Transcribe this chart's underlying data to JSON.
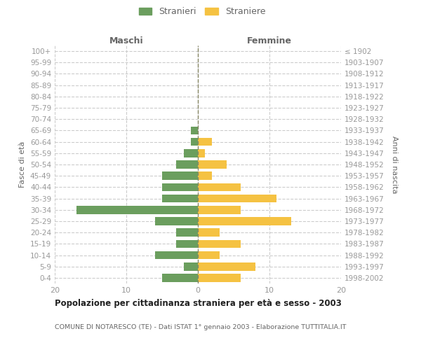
{
  "age_groups": [
    "100+",
    "95-99",
    "90-94",
    "85-89",
    "80-84",
    "75-79",
    "70-74",
    "65-69",
    "60-64",
    "55-59",
    "50-54",
    "45-49",
    "40-44",
    "35-39",
    "30-34",
    "25-29",
    "20-24",
    "15-19",
    "10-14",
    "5-9",
    "0-4"
  ],
  "birth_years": [
    "≤ 1902",
    "1903-1907",
    "1908-1912",
    "1913-1917",
    "1918-1922",
    "1923-1927",
    "1928-1932",
    "1933-1937",
    "1938-1942",
    "1943-1947",
    "1948-1952",
    "1953-1957",
    "1958-1962",
    "1963-1967",
    "1968-1972",
    "1973-1977",
    "1978-1982",
    "1983-1987",
    "1988-1992",
    "1993-1997",
    "1998-2002"
  ],
  "maschi": [
    0,
    0,
    0,
    0,
    0,
    0,
    0,
    1,
    1,
    2,
    3,
    5,
    5,
    5,
    17,
    6,
    3,
    3,
    6,
    2,
    5
  ],
  "femmine": [
    0,
    0,
    0,
    0,
    0,
    0,
    0,
    0,
    2,
    1,
    4,
    2,
    6,
    11,
    6,
    13,
    3,
    6,
    3,
    8,
    6
  ],
  "maschi_color": "#6b9e5e",
  "femmine_color": "#f5c242",
  "title": "Popolazione per cittadinanza straniera per età e sesso - 2003",
  "subtitle": "COMUNE DI NOTARESCO (TE) - Dati ISTAT 1° gennaio 2003 - Elaborazione TUTTITALIA.IT",
  "xlabel_left": "Maschi",
  "xlabel_right": "Femmine",
  "ylabel_left": "Fasce di età",
  "ylabel_right": "Anni di nascita",
  "legend_stranieri": "Stranieri",
  "legend_straniere": "Straniere",
  "xlim": 20,
  "background_color": "#ffffff",
  "grid_color": "#cccccc",
  "grid_linestyle": "--",
  "tick_color": "#999999",
  "text_color": "#666666",
  "title_color": "#222222",
  "center_line_color": "#888866"
}
